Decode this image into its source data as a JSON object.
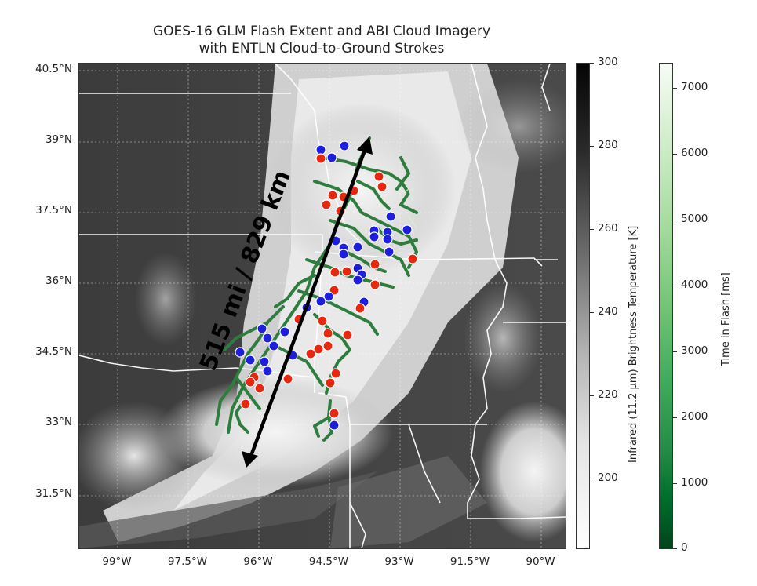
{
  "title": {
    "line1": "GOES-16 GLM Flash Extent and ABI Cloud Imagery",
    "line2": "with ENTLN Cloud-to-Ground Strokes"
  },
  "map": {
    "lat_ticks": [
      "40.5°N",
      "39°N",
      "37.5°N",
      "36°N",
      "34.5°N",
      "33°N",
      "31.5°N"
    ],
    "lon_ticks": [
      "99°W",
      "97.5°W",
      "96°W",
      "94.5°W",
      "93°W",
      "91.5°W",
      "90°W"
    ],
    "annotation": "515 mi / 829 km",
    "arrow_color": "#000000",
    "flash_color": "#2e7d3e",
    "positive_stroke_color": "#e8280e",
    "negative_stroke_color": "#1e1ee0"
  },
  "colorbar_ir": {
    "label": "Infrared (11.2 μm) Brightness Temperature [K]",
    "ticks": [
      "300",
      "280",
      "260",
      "240",
      "220",
      "200"
    ]
  },
  "colorbar_flash": {
    "label": "Time in Flash [ms]",
    "ticks": [
      "7000",
      "6000",
      "5000",
      "4000",
      "3000",
      "2000",
      "1000",
      "0"
    ]
  }
}
